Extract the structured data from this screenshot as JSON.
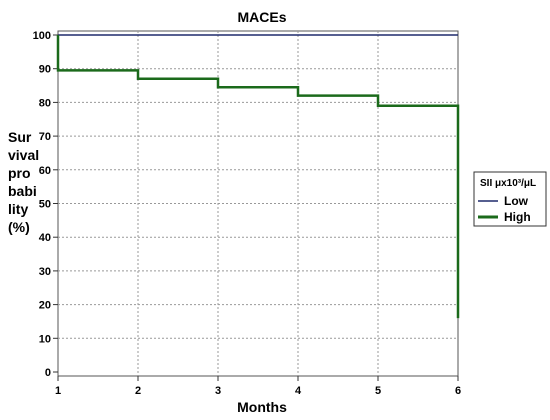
{
  "chart_data": {
    "type": "line",
    "title": "MACEs",
    "xlabel": "Months",
    "ylabel_lines": [
      "Sur",
      "vival",
      "pro",
      "babi",
      "lity",
      "(%)"
    ],
    "x_ticks": [
      "1",
      "2",
      "3",
      "4",
      "5",
      "6"
    ],
    "y_ticks": [
      "0",
      "10",
      "20",
      "30",
      "40",
      "50",
      "60",
      "70",
      "80",
      "90",
      "100"
    ],
    "xlim": [
      1,
      6
    ],
    "ylim": [
      0,
      100
    ],
    "grid": true,
    "legend": {
      "title": "SII μx10³/μL",
      "placement": "right",
      "entries": [
        "Low",
        "High"
      ]
    },
    "series": [
      {
        "name": "Low",
        "color": "#1f2a6b",
        "step": true,
        "x": [
          1,
          6
        ],
        "y": [
          100,
          100
        ]
      },
      {
        "name": "High",
        "color": "#1b6a1b",
        "step": true,
        "x": [
          1,
          1,
          2,
          3,
          4,
          5,
          6,
          6
        ],
        "y": [
          100,
          89.5,
          87,
          84.5,
          82,
          79,
          79,
          16
        ]
      }
    ]
  }
}
